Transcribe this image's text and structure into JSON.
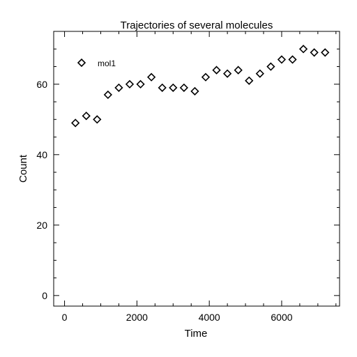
{
  "chart_data": {
    "type": "scatter",
    "title": "Trajectories of several molecules",
    "xlabel": "Time",
    "ylabel": "Count",
    "xlim": [
      -300,
      7600
    ],
    "ylim": [
      -3,
      75
    ],
    "xticks": [
      0,
      2000,
      4000,
      6000
    ],
    "xtick_labels": [
      "0",
      "2000",
      "4000",
      "6000"
    ],
    "yticks": [
      0,
      20,
      40,
      60
    ],
    "ytick_labels": [
      "0",
      "20",
      "40",
      "60"
    ],
    "x_minor_step": 500,
    "y_minor_step": 5,
    "grid": false,
    "legend_position": "top-left",
    "marker": "diamond-open",
    "series": [
      {
        "name": "mol1",
        "x": [
          300,
          600,
          900,
          1200,
          1500,
          1800,
          2100,
          2400,
          2700,
          3000,
          3300,
          3600,
          3900,
          4200,
          4500,
          4800,
          5100,
          5400,
          5700,
          6000,
          6300,
          6600,
          6900,
          7200
        ],
        "y": [
          49,
          51,
          50,
          57,
          59,
          60,
          60,
          62,
          59,
          59,
          59,
          58,
          62,
          64,
          63,
          64,
          61,
          63,
          65,
          67,
          67,
          70,
          69,
          69
        ]
      }
    ]
  }
}
